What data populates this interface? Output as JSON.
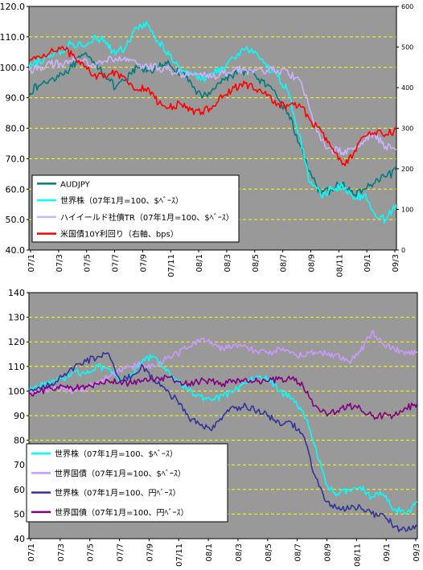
{
  "chart_data": [
    {
      "type": "line",
      "x_labels": [
        "07/1",
        "07/3",
        "07/5",
        "07/7",
        "07/9",
        "07/11",
        "08/1",
        "08/3",
        "08/5",
        "08/7",
        "08/9",
        "08/11",
        "09/1",
        "09/3"
      ],
      "left_axis": {
        "ylim": [
          40,
          120
        ],
        "ticks": [
          "120.0",
          "110.0",
          "100.0",
          "90.0",
          "80.0",
          "70.0",
          "60.0",
          "50.0",
          "40.0"
        ]
      },
      "right_axis": {
        "ylim": [
          0,
          600
        ],
        "ticks": [
          "600",
          "500",
          "400",
          "300",
          "200",
          "100",
          "0"
        ]
      },
      "grid": "dashed yellow horizontal lines at left-axis ticks",
      "background": "#999999",
      "legend_position": "bottom-left",
      "series": [
        {
          "name": "AUDJPY",
          "color": "#007c80",
          "axis": "left",
          "values": [
            92,
            94,
            96,
            98,
            100,
            104,
            102,
            98,
            93,
            96,
            100,
            99,
            100,
            101,
            98,
            95,
            90,
            93,
            96,
            98,
            99,
            97,
            94,
            90,
            85,
            75,
            66,
            58,
            60,
            62,
            58,
            60,
            62,
            64,
            66
          ]
        },
        {
          "name": "世界株（07年1月=100、$ﾍﾞｰｽ）",
          "color": "#00ffff",
          "axis": "left",
          "values": [
            100,
            102,
            104,
            105,
            108,
            107,
            110,
            109,
            104,
            107,
            113,
            114,
            108,
            104,
            100,
            98,
            96,
            98,
            100,
            103,
            106,
            105,
            100,
            97,
            92,
            78,
            62,
            58,
            60,
            61,
            57,
            58,
            52,
            50,
            55
          ]
        },
        {
          "name": "ハイイールド社債TR（07年1月=100、$ﾍﾞｰｽ）",
          "color": "#ccb3ff",
          "axis": "left",
          "values": [
            99,
            100,
            101,
            101,
            102,
            102,
            101,
            102,
            103,
            102,
            101,
            100,
            100,
            99,
            98,
            98,
            97,
            97,
            98,
            99,
            99,
            99,
            99,
            99,
            98,
            96,
            86,
            76,
            73,
            72,
            73,
            76,
            78,
            74,
            73
          ]
        },
        {
          "name": "米国債10Y利回り（右軸、bps）",
          "color": "#ff0000",
          "axis": "right",
          "values": [
            465,
            475,
            490,
            500,
            480,
            460,
            430,
            430,
            440,
            420,
            395,
            400,
            360,
            350,
            360,
            345,
            340,
            355,
            380,
            400,
            410,
            395,
            380,
            360,
            355,
            360,
            320,
            295,
            250,
            210,
            235,
            280,
            290,
            285,
            295
          ]
        }
      ]
    },
    {
      "type": "line",
      "x_labels": [
        "07/1",
        "07/3",
        "07/5",
        "07/7",
        "07/9",
        "07/11",
        "08/1",
        "08/3",
        "08/5",
        "08/7",
        "08/9",
        "08/11",
        "09/1",
        "09/3"
      ],
      "ylim": [
        40,
        140
      ],
      "y_ticks": [
        "140",
        "130",
        "120",
        "110",
        "100",
        "90",
        "80",
        "70",
        "60",
        "50",
        "40"
      ],
      "grid": "dashed yellow horizontal lines at y ticks",
      "background": "#999999",
      "legend_position": "bottom-left",
      "series": [
        {
          "name": "世界株（07年1月=100、$ﾍﾞｰｽ）",
          "color": "#00ffff",
          "values": [
            100,
            102,
            104,
            105,
            108,
            107,
            110,
            109,
            104,
            107,
            113,
            114,
            108,
            104,
            100,
            98,
            96,
            98,
            100,
            103,
            106,
            105,
            100,
            97,
            92,
            78,
            62,
            58,
            60,
            61,
            57,
            58,
            52,
            50,
            55
          ]
        },
        {
          "name": "世界国債（07年1月=100、$ﾍﾞｰｽ）",
          "color": "#cc99ff",
          "values": [
            100,
            100,
            101,
            101,
            100,
            101,
            104,
            106,
            108,
            110,
            111,
            110,
            113,
            115,
            118,
            121,
            120,
            117,
            119,
            118,
            116,
            115,
            117,
            116,
            114,
            116,
            115,
            115,
            112,
            116,
            124,
            119,
            117,
            116,
            116
          ]
        },
        {
          "name": "世界株（07年1月=100、円ﾍﾞｰｽ）",
          "color": "#333399",
          "values": [
            100,
            101,
            103,
            106,
            110,
            112,
            114,
            115,
            104,
            106,
            110,
            104,
            100,
            96,
            89,
            86,
            84,
            90,
            93,
            94,
            92,
            90,
            86,
            87,
            82,
            66,
            55,
            52,
            52,
            53,
            50,
            50,
            45,
            43,
            45
          ]
        },
        {
          "name": "世界国債（07年1月=100、円ﾍﾞｰｽ）",
          "color": "#800080",
          "values": [
            99,
            100,
            101,
            102,
            101,
            102,
            103,
            104,
            104,
            103,
            104,
            104,
            106,
            104,
            103,
            104,
            104,
            103,
            104,
            105,
            104,
            104,
            105,
            105,
            102,
            94,
            91,
            92,
            94,
            93,
            90,
            90,
            90,
            93,
            95
          ]
        }
      ]
    }
  ]
}
